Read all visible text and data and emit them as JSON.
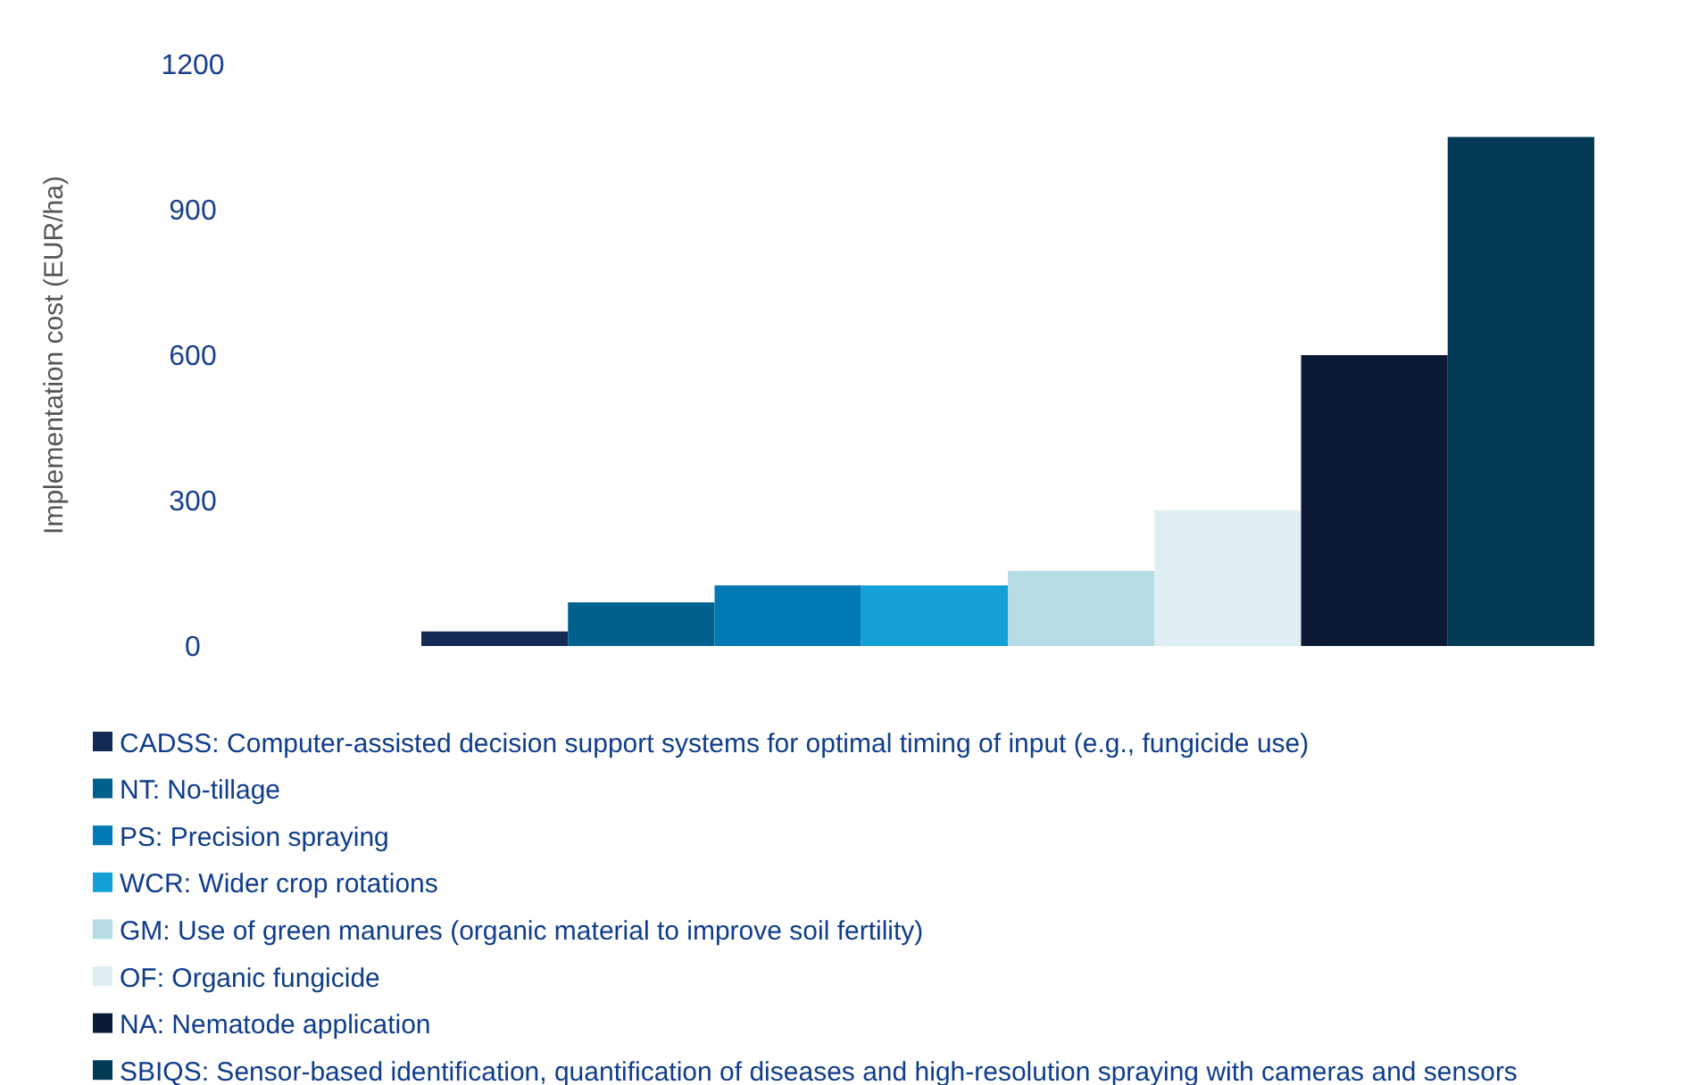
{
  "chart_data": {
    "type": "bar",
    "ylabel": "Implementation cost (EUR/ha)",
    "categories": [
      null,
      null,
      null,
      null,
      null,
      null,
      null,
      null
    ],
    "stacked": true,
    "series": [
      {
        "name": "CADSS: Computer-assisted decision support systems for optimal timing of input (e.g., fungicide use)",
        "color": "#132a54",
        "values": [
          30,
          null,
          null,
          null,
          null,
          null,
          null,
          null
        ]
      },
      {
        "name": "NT: No-tillage",
        "color": "#00618f",
        "values": [
          null,
          90,
          null,
          null,
          null,
          null,
          null,
          null
        ]
      },
      {
        "name": "PS: Precision spraying",
        "color": "#0079b4",
        "values": [
          null,
          null,
          125,
          null,
          null,
          null,
          null,
          null
        ]
      },
      {
        "name": "WCR: Wider crop rotations",
        "color": "#13a0d6",
        "values": [
          null,
          null,
          null,
          125,
          null,
          null,
          null,
          null
        ]
      },
      {
        "name": "GM: Use of green manures (organic material to improve soil fertility)",
        "color": "#b5dbe5",
        "values": [
          null,
          null,
          null,
          null,
          155,
          null,
          null,
          null
        ]
      },
      {
        "name": "OF: Organic fungicide",
        "color": "#deeef2",
        "values": [
          null,
          null,
          null,
          null,
          null,
          280,
          null,
          null
        ]
      },
      {
        "name": "NA: Nematode application",
        "color": "#0c1b35",
        "values": [
          null,
          null,
          null,
          null,
          null,
          null,
          600,
          null
        ]
      },
      {
        "name": "SBIQS: Sensor-based identification, quantification of diseases and high-resolution spraying with cameras and sensors",
        "color": "#033a56",
        "values": [
          null,
          null,
          null,
          null,
          null,
          null,
          null,
          1050
        ]
      }
    ],
    "ylim": [
      0,
      1200
    ],
    "yticks": [
      0,
      300,
      600,
      900,
      1200
    ],
    "grid": false,
    "legend": "bottom"
  }
}
